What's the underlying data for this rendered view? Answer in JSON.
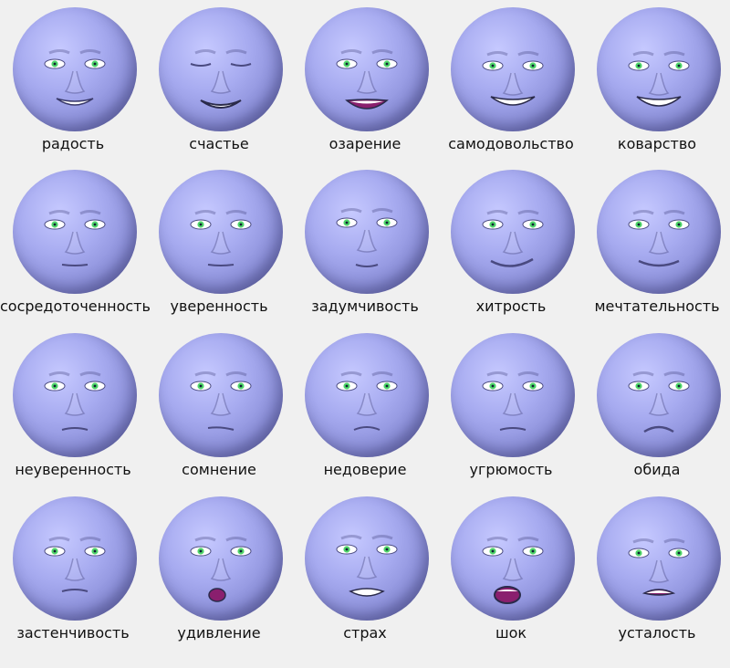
{
  "faces": [
    {
      "label": "радость",
      "expression": "joy"
    },
    {
      "label": "счастье",
      "expression": "happiness"
    },
    {
      "label": "озарение",
      "expression": "insight"
    },
    {
      "label": "самодовольство",
      "expression": "smugness"
    },
    {
      "label": "коварство",
      "expression": "cunning"
    },
    {
      "label": "сосредоточенность",
      "expression": "concentration"
    },
    {
      "label": "уверенность",
      "expression": "confidence"
    },
    {
      "label": "задумчивость",
      "expression": "thoughtfulness"
    },
    {
      "label": "хитрость",
      "expression": "slyness"
    },
    {
      "label": "мечтательность",
      "expression": "dreaminess"
    },
    {
      "label": "неуверенность",
      "expression": "uncertainty"
    },
    {
      "label": "сомнение",
      "expression": "doubt"
    },
    {
      "label": "недоверие",
      "expression": "distrust"
    },
    {
      "label": "угрюмость",
      "expression": "gloominess"
    },
    {
      "label": "обида",
      "expression": "resentment"
    },
    {
      "label": "застенчивость",
      "expression": "shyness"
    },
    {
      "label": "удивление",
      "expression": "surprise"
    },
    {
      "label": "страх",
      "expression": "fear"
    },
    {
      "label": "шок",
      "expression": "shock"
    },
    {
      "label": "усталость",
      "expression": "tiredness"
    }
  ],
  "colors": {
    "background": "#f0f0f0",
    "face": "#a7abf0",
    "iris": "#4fd66a",
    "mouth_inner": "#8a1f6e",
    "teeth": "#ffffff"
  }
}
